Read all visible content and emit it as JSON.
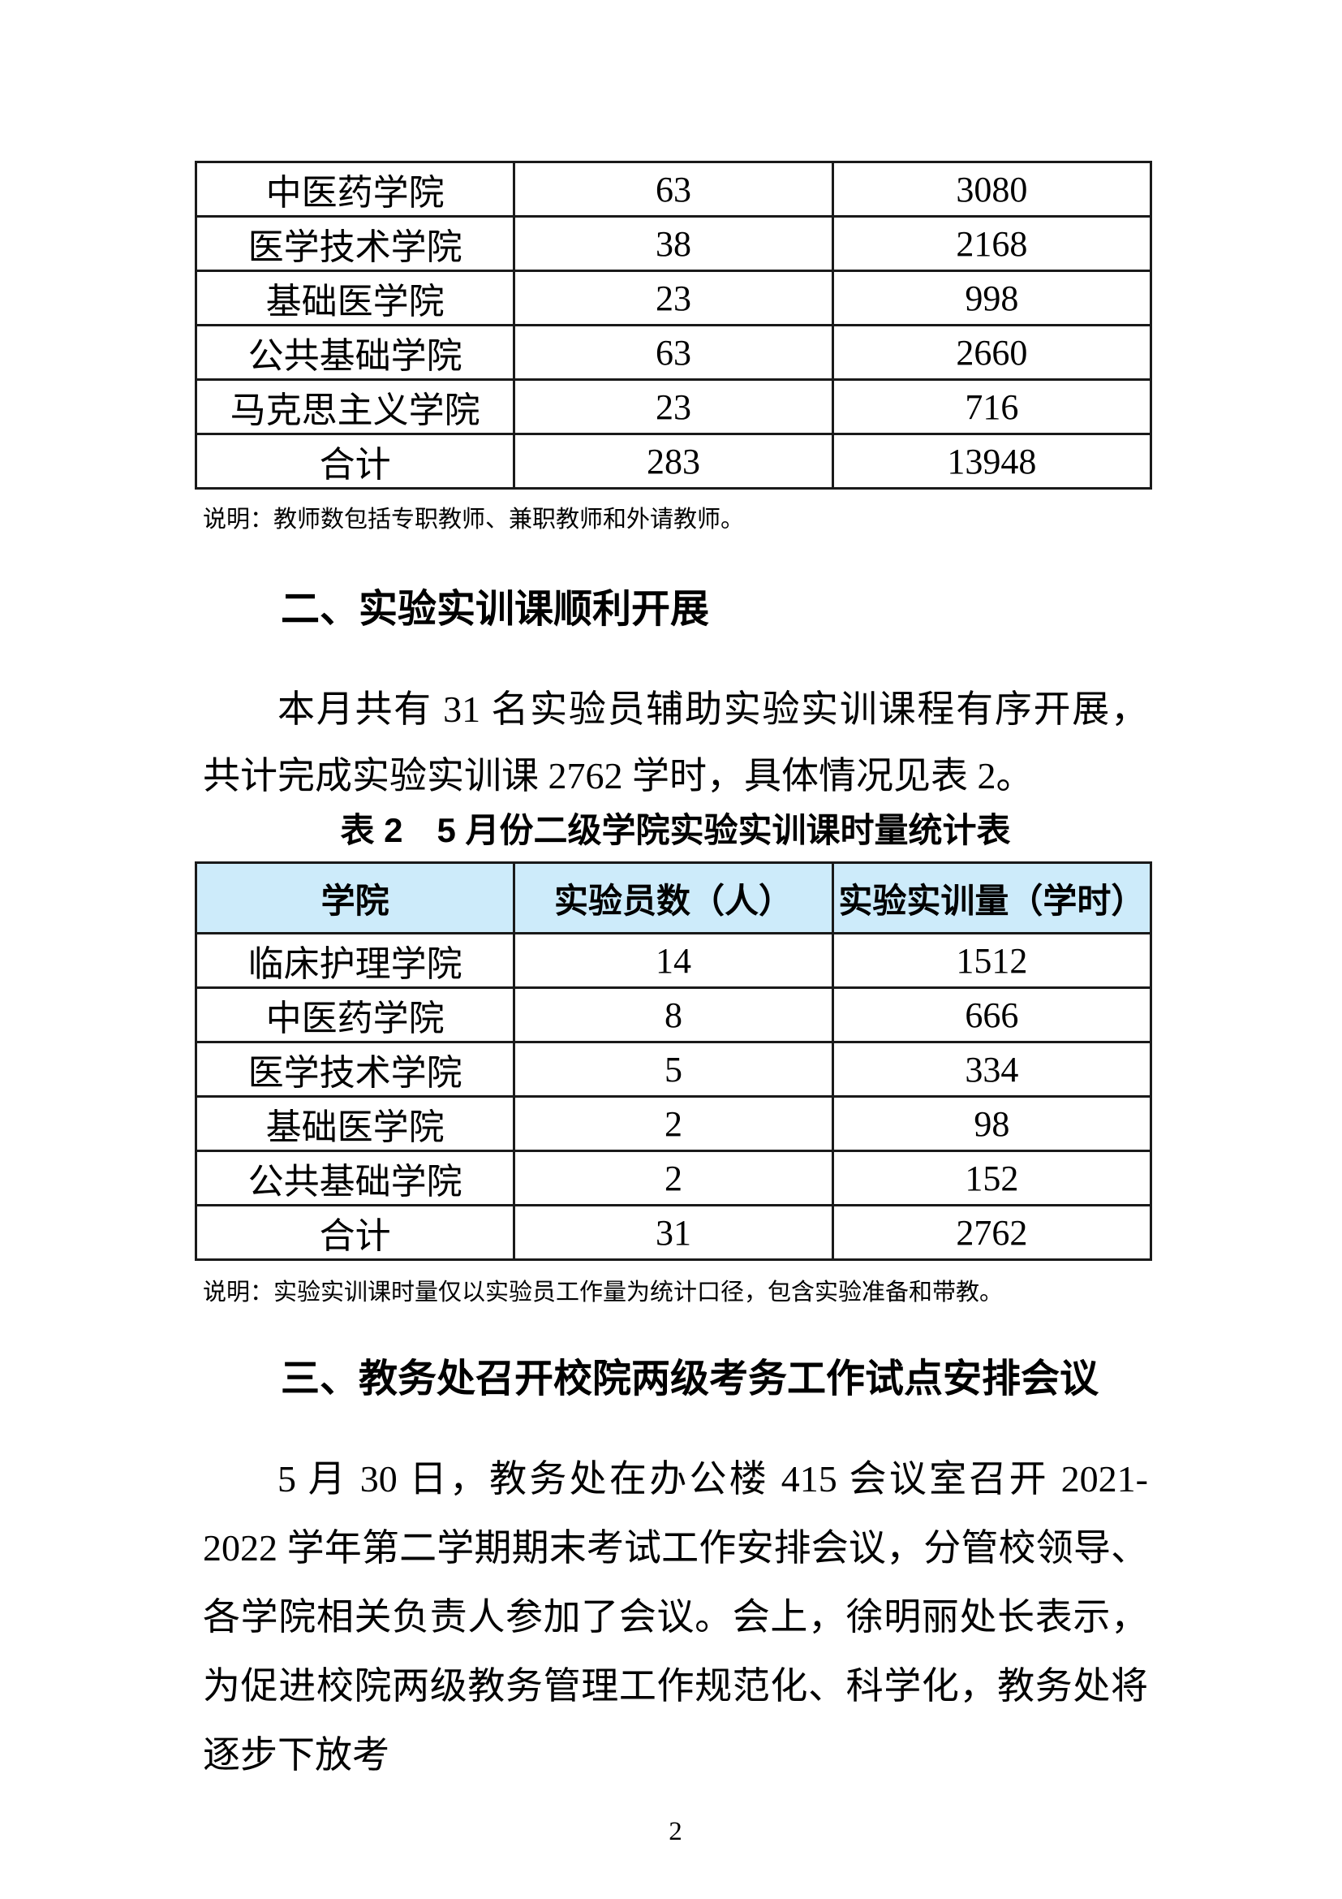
{
  "page": {
    "number": "2",
    "background": "#ffffff"
  },
  "table1": {
    "rows": [
      {
        "college": "中医药学院",
        "teachers": "63",
        "hours": "3080"
      },
      {
        "college": "医学技术学院",
        "teachers": "38",
        "hours": "2168"
      },
      {
        "college": "基础医学院",
        "teachers": "23",
        "hours": "998"
      },
      {
        "college": "公共基础学院",
        "teachers": "63",
        "hours": "2660"
      },
      {
        "college": "马克思主义学院",
        "teachers": "23",
        "hours": "716"
      },
      {
        "college": "合计",
        "teachers": "283",
        "hours": "13948"
      }
    ],
    "note": "说明：教师数包括专职教师、兼职教师和外请教师。"
  },
  "section2": {
    "heading": "二、实验实训课顺利开展",
    "paragraph": "本月共有 31 名实验员辅助实验实训课程有序开展，共计完成实验实训课 2762 学时，具体情况见表 2。",
    "table_caption": "表 2　5 月份二级学院实验实训课时量统计表"
  },
  "table2": {
    "header_bg": "#CDEBFA",
    "header": [
      "学院",
      "实验员数（人）",
      "实验实训量（学时）"
    ],
    "rows": [
      {
        "college": "临床护理学院",
        "staff": "14",
        "hours": "1512"
      },
      {
        "college": "中医药学院",
        "staff": "8",
        "hours": "666"
      },
      {
        "college": "医学技术学院",
        "staff": "5",
        "hours": "334"
      },
      {
        "college": "基础医学院",
        "staff": "2",
        "hours": "98"
      },
      {
        "college": "公共基础学院",
        "staff": "2",
        "hours": "152"
      },
      {
        "college": "合计",
        "staff": "31",
        "hours": "2762"
      }
    ],
    "note": "说明：实验实训课时量仅以实验员工作量为统计口径，包含实验准备和带教。"
  },
  "section3": {
    "heading": "三、教务处召开校院两级考务工作试点安排会议",
    "paragraph": "5 月 30 日，教务处在办公楼 415 会议室召开 2021-2022 学年第二学期期末考试工作安排会议，分管校领导、各学院相关负责人参加了会议。会上，徐明丽处长表示，为促进校院两级教务管理工作规范化、科学化，教务处将逐步下放考"
  }
}
